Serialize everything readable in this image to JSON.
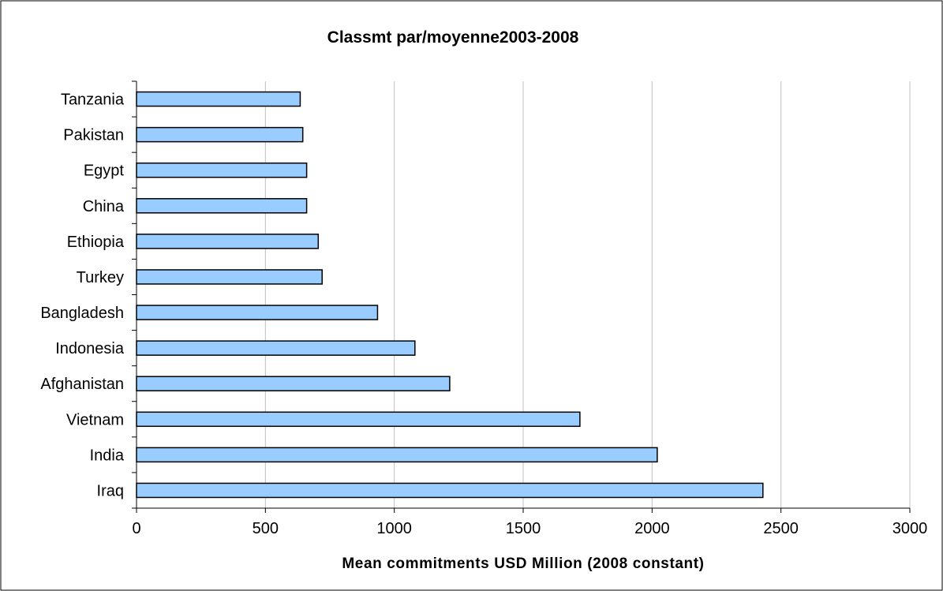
{
  "chart_data": {
    "type": "bar",
    "orientation": "horizontal",
    "title": "Classmt par/moyenne2003-2008",
    "xlabel": "Mean commitments USD Million (2008 constant)",
    "ylabel": "",
    "categories": [
      "Tanzania",
      "Pakistan",
      "Egypt",
      "China",
      "Ethiopia",
      "Turkey",
      "Bangladesh",
      "Indonesia",
      "Afghanistan",
      "Vietnam",
      "India",
      "Iraq"
    ],
    "values": [
      635,
      645,
      660,
      660,
      705,
      720,
      935,
      1080,
      1215,
      1720,
      2020,
      2430
    ],
    "xlim": [
      0,
      3000
    ],
    "xticks": [
      "0",
      "500",
      "1000",
      "1500",
      "2000",
      "2500",
      "3000"
    ],
    "grid": "vertical",
    "legend": "none",
    "colors": {
      "bar_fill": "#99ccff",
      "bar_stroke": "#000000",
      "grid": "#c0c0c0",
      "axis": "#000000",
      "frame": "#000000"
    }
  }
}
